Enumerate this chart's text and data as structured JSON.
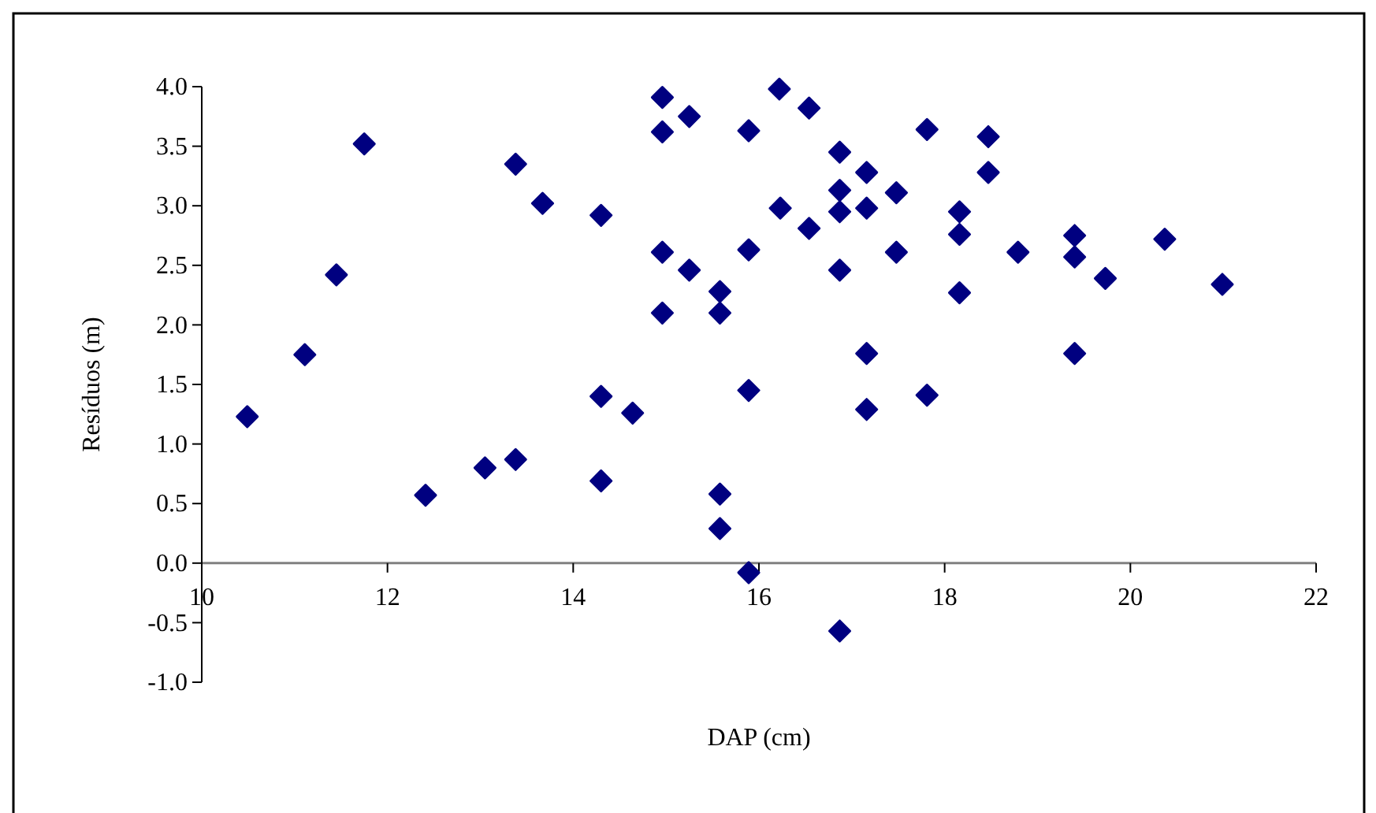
{
  "chart_data": {
    "type": "scatter",
    "xlabel": "DAP (cm)",
    "ylabel": "Resíduos (m)",
    "marker": "diamond",
    "xlim": [
      10,
      22
    ],
    "xticks": [
      10,
      12,
      14,
      16,
      18,
      20,
      22
    ],
    "ylim": [
      -1.0,
      4.0
    ],
    "yticks": [
      {
        "value": -1,
        "label": "-1.0"
      },
      {
        "value": -0.5,
        "label": "-0.5"
      },
      {
        "value": 0,
        "label": "0.0"
      },
      {
        "value": 0.5,
        "label": "0.5"
      },
      {
        "value": 1,
        "label": "1.0"
      },
      {
        "value": 1.5,
        "label": "1.5"
      },
      {
        "value": 2,
        "label": "2.0"
      },
      {
        "value": 2.5,
        "label": "2.5"
      },
      {
        "value": 3,
        "label": "3.0"
      },
      {
        "value": 3.5,
        "label": "3.5"
      },
      {
        "value": 4,
        "label": "4.0"
      }
    ],
    "series": [
      {
        "color": "#000080",
        "x": [
          11.11,
          11.45,
          11.75,
          13.38,
          13.67,
          14.3,
          14.96,
          14.96,
          15.25,
          15.89,
          14.96,
          15.25,
          15.58,
          14.96,
          15.58,
          15.89,
          16.22,
          16.54,
          17.81,
          18.47,
          16.87,
          17.16,
          18.47,
          16.87,
          17.48,
          16.23,
          16.87,
          17.16,
          18.16,
          18.16,
          16.54,
          17.48,
          18.79,
          19.4,
          19.4,
          20.37,
          19.73,
          20.99,
          16.87,
          18.16,
          17.16,
          19.4,
          10.49,
          12.41,
          13.05,
          13.38,
          14.3,
          14.64,
          14.3,
          15.58,
          15.58,
          15.89,
          15.89,
          17.16,
          17.81,
          16.87
        ],
        "values": [
          1.75,
          2.42,
          3.52,
          3.35,
          3.02,
          2.92,
          3.91,
          3.62,
          3.75,
          3.63,
          2.61,
          2.46,
          2.28,
          2.1,
          2.1,
          2.63,
          3.98,
          3.82,
          3.64,
          3.58,
          3.45,
          3.28,
          3.28,
          3.13,
          3.11,
          2.98,
          2.95,
          2.98,
          2.95,
          2.76,
          2.81,
          2.61,
          2.61,
          2.75,
          2.57,
          2.72,
          2.39,
          2.34,
          2.46,
          2.27,
          1.76,
          1.76,
          1.23,
          0.57,
          0.8,
          0.87,
          1.4,
          1.26,
          0.69,
          0.58,
          0.29,
          1.45,
          -0.08,
          1.29,
          1.41,
          -0.57
        ]
      }
    ]
  }
}
